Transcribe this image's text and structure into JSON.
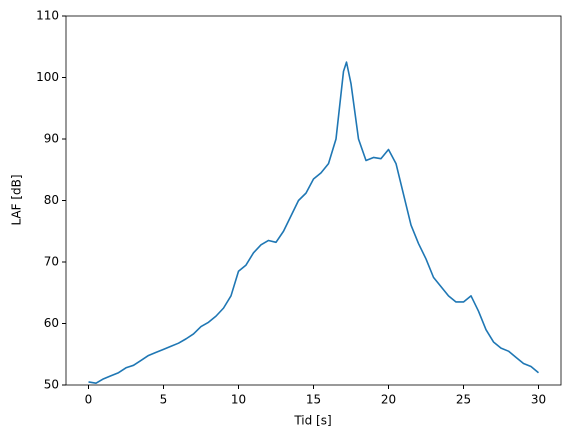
{
  "chart_data": {
    "type": "line",
    "xlabel": "Tid [s]",
    "ylabel": "LAF [dB]",
    "x": [
      0,
      0.5,
      1,
      1.5,
      2,
      2.5,
      3,
      3.5,
      4,
      4.5,
      5,
      5.5,
      6,
      6.5,
      7,
      7.5,
      8,
      8.5,
      9,
      9.5,
      10,
      10.5,
      11,
      11.5,
      12,
      12.5,
      13,
      13.5,
      14,
      14.5,
      15,
      15.5,
      16,
      16.5,
      17,
      17.2,
      17.5,
      18,
      18.5,
      19,
      19.5,
      20,
      20.5,
      21,
      21.5,
      22,
      22.5,
      23,
      23.5,
      24,
      24.5,
      25,
      25.5,
      26,
      26.5,
      27,
      27.5,
      28,
      28.5,
      29,
      29.5,
      30
    ],
    "series": [
      {
        "color": "#1f77b4",
        "values": [
          50.5,
          50.3,
          51,
          51.5,
          52,
          52.8,
          53.2,
          54,
          54.8,
          55.3,
          55.8,
          56.3,
          56.8,
          57.5,
          58.3,
          59.5,
          60.2,
          61.2,
          62.5,
          64.5,
          68.5,
          69.5,
          71.5,
          72.8,
          73.5,
          73.2,
          75,
          77.5,
          80,
          81.2,
          83.5,
          84.5,
          86,
          90,
          101,
          102.5,
          99,
          90,
          86.5,
          87,
          86.8,
          88.3,
          86,
          81,
          76,
          73,
          70.5,
          67.5,
          66,
          64.5,
          63.5,
          63.5,
          64.5,
          62,
          59,
          57,
          56,
          55.5,
          54.5,
          53.5,
          53,
          52
        ]
      }
    ],
    "xlim": [
      -1.5,
      31.5
    ],
    "xticks": [
      0,
      5,
      10,
      15,
      20,
      25,
      30
    ],
    "ylim": [
      50,
      110
    ],
    "yticks": [
      50,
      60,
      70,
      80,
      90,
      100,
      110
    ],
    "grid": false
  }
}
